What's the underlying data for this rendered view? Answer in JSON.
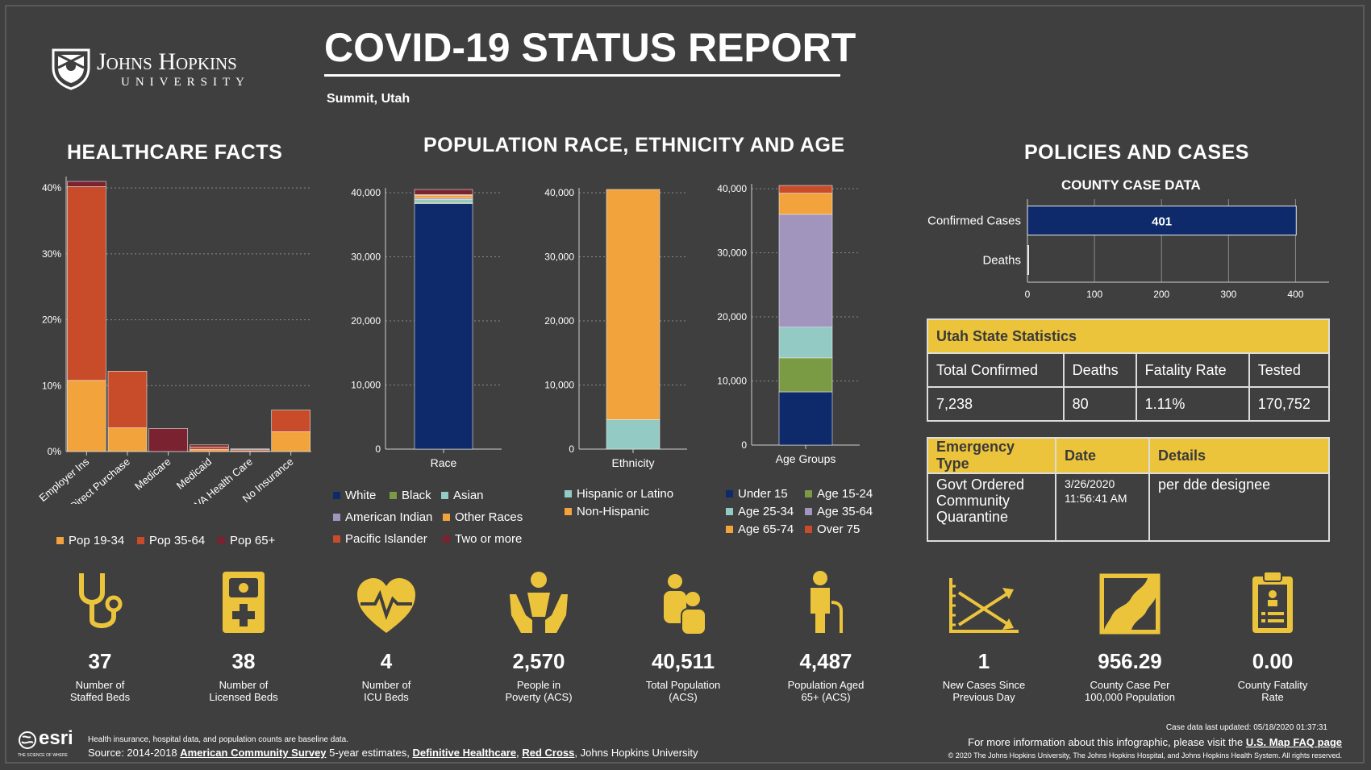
{
  "header": {
    "logo_name": "Johns Hopkins",
    "logo_sub": "UNIVERSITY",
    "title": "COVID-19 STATUS REPORT",
    "location": "Summit, Utah"
  },
  "sections": {
    "healthcare": "HEALTHCARE FACTS",
    "population": "POPULATION RACE, ETHNICITY AND AGE",
    "policies": "POLICIES AND CASES",
    "county_case": "COUNTY CASE DATA"
  },
  "chart_data": [
    {
      "id": "healthcare",
      "type": "bar",
      "stacked": true,
      "categories": [
        "Employer Ins",
        "Direct Purchase",
        "Medicare",
        "Medicaid",
        "VA Health Care",
        "No Insurance"
      ],
      "series": [
        {
          "name": "Pop 19-34",
          "color": "#f3a33c",
          "values": [
            10.8,
            3.6,
            0,
            0.3,
            0.1,
            3.0
          ]
        },
        {
          "name": "Pop 35-64",
          "color": "#c94c2a",
          "values": [
            29.4,
            8.6,
            0,
            0.4,
            0.2,
            3.3
          ]
        },
        {
          "name": "Pop 65+",
          "color": "#7a2230",
          "values": [
            0.8,
            0,
            3.5,
            0.3,
            0.1,
            0
          ]
        }
      ],
      "yticks": [
        "0%",
        "10%",
        "20%",
        "30%",
        "40%"
      ],
      "ylim": [
        0,
        41
      ]
    },
    {
      "id": "race",
      "type": "bar",
      "stacked": true,
      "categories": [
        "Race"
      ],
      "series": [
        {
          "name": "White",
          "color": "#0f2a6b",
          "values": [
            38300
          ]
        },
        {
          "name": "Black",
          "color": "#7a9a44",
          "values": [
            150
          ]
        },
        {
          "name": "Asian",
          "color": "#93cbc4",
          "values": [
            500
          ]
        },
        {
          "name": "American Indian",
          "color": "#a195bd",
          "values": [
            200
          ]
        },
        {
          "name": "Other Races",
          "color": "#f3a33c",
          "values": [
            450
          ]
        },
        {
          "name": "Pacific Islander",
          "color": "#c94c2a",
          "values": [
            100
          ]
        },
        {
          "name": "Two or more",
          "color": "#7a2230",
          "values": [
            800
          ]
        }
      ],
      "yticks": [
        "0",
        "10,000",
        "20,000",
        "30,000",
        "40,000"
      ],
      "ylim": [
        0,
        40000
      ]
    },
    {
      "id": "ethnicity",
      "type": "bar",
      "stacked": true,
      "categories": [
        "Ethnicity"
      ],
      "series": [
        {
          "name": "Hispanic or Latino",
          "color": "#93cbc4",
          "values": [
            4600
          ]
        },
        {
          "name": "Non-Hispanic",
          "color": "#f3a33c",
          "values": [
            35911
          ]
        }
      ],
      "yticks": [
        "0",
        "10,000",
        "20,000",
        "30,000",
        "40,000"
      ],
      "ylim": [
        0,
        40000
      ]
    },
    {
      "id": "age",
      "type": "bar",
      "stacked": true,
      "categories": [
        "Age Groups"
      ],
      "series": [
        {
          "name": "Under 15",
          "color": "#0f2a6b",
          "values": [
            8300
          ]
        },
        {
          "name": "Age 15-24",
          "color": "#7a9a44",
          "values": [
            5300
          ]
        },
        {
          "name": "Age 25-34",
          "color": "#93cbc4",
          "values": [
            4800
          ]
        },
        {
          "name": "Age 35-64",
          "color": "#a195bd",
          "values": [
            17600
          ]
        },
        {
          "name": "Age 65-74",
          "color": "#f3a33c",
          "values": [
            3300
          ]
        },
        {
          "name": "Over 75",
          "color": "#c94c2a",
          "values": [
            1200
          ]
        }
      ],
      "yticks": [
        "0",
        "10,000",
        "20,000",
        "30,000",
        "40,000"
      ],
      "ylim": [
        0,
        40000
      ]
    },
    {
      "id": "county_cases",
      "type": "bar",
      "orientation": "horizontal",
      "categories": [
        "Confirmed Cases",
        "Deaths"
      ],
      "values": [
        401,
        0
      ],
      "value_labels": [
        "401",
        ""
      ],
      "xticks": [
        "0",
        "100",
        "200",
        "300",
        "400"
      ],
      "xlim": [
        0,
        450
      ],
      "color": "#0f2a6b"
    }
  ],
  "state_stats": {
    "title": "Utah State Statistics",
    "headers": [
      "Total Confirmed",
      "Deaths",
      "Fatality Rate",
      "Tested"
    ],
    "values": [
      "7,238",
      "80",
      "1.11%",
      "170,752"
    ]
  },
  "emergency": {
    "headers": [
      "Emergency Type",
      "Date",
      "Details"
    ],
    "type": "Govt Ordered Community Quarantine",
    "date": "3/26/2020 11:56:41 AM",
    "details": "per dde designee"
  },
  "stats": [
    {
      "icon": "stethoscope-icon",
      "value": "37",
      "label": "Number of\nStaffed Beds"
    },
    {
      "icon": "hospital-bed-icon",
      "value": "38",
      "label": "Number of\nLicensed Beds"
    },
    {
      "icon": "heartbeat-icon",
      "value": "4",
      "label": "Number of\nICU Beds"
    },
    {
      "icon": "hands-person-icon",
      "value": "2,570",
      "label": "People in\nPoverty (ACS)"
    },
    {
      "icon": "family-icon",
      "value": "40,511",
      "label": "Total Population\n(ACS)"
    },
    {
      "icon": "elderly-person-icon",
      "value": "4,487",
      "label": "Population Aged\n65+ (ACS)"
    },
    {
      "icon": "trend-chart-icon",
      "value": "1",
      "label": "New Cases Since\nPrevious Day"
    },
    {
      "icon": "county-map-icon",
      "value": "956.29",
      "label": "County Case Per\n100,000 Population"
    },
    {
      "icon": "clipboard-icon",
      "value": "0.00",
      "label": "County Fatality\nRate"
    }
  ],
  "footer": {
    "esri": "esri",
    "esri_tag": "THE SCIENCE OF WHERE",
    "note": "Health insurance, hospital data, and population counts are baseline data.",
    "source_prefix": "Source: 2014-2018 ",
    "source_link1": "American Community Survey",
    "source_mid": " 5-year estimates, ",
    "source_link2": "Definitive Healthcare",
    "source_sep": ", ",
    "source_link3": "Red Cross",
    "source_suffix": ", Johns Hopkins University",
    "updated": "Case data last updated: 05/18/2020 01:37:31",
    "more_info_prefix": "For more information about this infographic, please visit the ",
    "more_info_link": "U.S. Map FAQ page",
    "copyright": "© 2020 The Johns Hopkins University, The Johns Hopkins Hospital, and Johns Hopkins Health System. All rights reserved."
  }
}
